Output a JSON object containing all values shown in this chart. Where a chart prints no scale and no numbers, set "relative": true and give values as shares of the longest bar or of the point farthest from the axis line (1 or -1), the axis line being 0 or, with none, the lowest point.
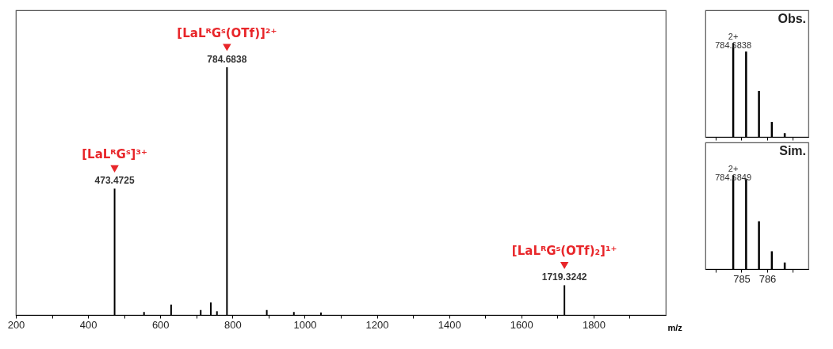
{
  "chart_data": [
    {
      "type": "bar",
      "relative": true,
      "xlabel": "m/z",
      "x": [
        473.4725,
        555,
        630,
        712,
        740,
        757,
        784.6838,
        895,
        970,
        1045,
        1719.3242
      ],
      "series": [
        {
          "color": "#000000",
          "values": [
            0.51,
            0.012,
            0.042,
            0.02,
            0.05,
            0.015,
            1,
            0.02,
            0.012,
            0.01,
            0.12
          ]
        }
      ],
      "xlim": [
        200,
        2000
      ],
      "xticks": [
        200,
        {
          "value": 300,
          "label": null
        },
        400,
        {
          "value": 500,
          "label": null
        },
        600,
        {
          "value": 700,
          "label": null
        },
        800,
        {
          "value": 900,
          "label": null
        },
        1000,
        {
          "value": 1100,
          "label": null
        },
        1200,
        {
          "value": 1300,
          "label": null
        },
        1400,
        {
          "value": 1500,
          "label": null
        },
        1600,
        {
          "value": 1700,
          "label": null
        },
        1800,
        {
          "value": 1900,
          "label": null
        }
      ],
      "annotations": [
        {
          "text": "[LaLᴿGˢ]³⁺",
          "x": 473.4725,
          "y": 0.51
        },
        {
          "text": "473.4725",
          "x": 473.4725,
          "y": 0.51
        },
        {
          "text": "[LaLᴿGˢ(OTf)]²⁺",
          "x": 784.6838,
          "y": 1
        },
        {
          "text": "784.6838",
          "x": 784.6838,
          "y": 1
        },
        {
          "text": "[LaLᴿGˢ(OTf)₂]¹⁺",
          "x": 1719.3242,
          "y": 0.12
        },
        {
          "text": "1719.3242",
          "x": 1719.3242,
          "y": 0.12
        }
      ],
      "grid": false,
      "legend": false
    },
    {
      "type": "bar",
      "relative": true,
      "title": "Obs.",
      "x": [
        784.68,
        785.18,
        785.68,
        786.18,
        786.68
      ],
      "series": [
        {
          "color": "#000000",
          "values": [
            1,
            0.91,
            0.49,
            0.16,
            0.04
          ]
        }
      ],
      "xlim": [
        783.6,
        787.6
      ],
      "xticks": [
        {
          "value": 784,
          "label": null
        },
        785,
        786,
        {
          "value": 787,
          "label": null
        }
      ],
      "tick_labels": false,
      "annotations": [
        {
          "text": "2+\n784.6838",
          "x": 784.68,
          "y": 1
        }
      ],
      "grid": false,
      "legend": false
    },
    {
      "type": "bar",
      "relative": true,
      "title": "Sim.",
      "x": [
        784.68,
        785.18,
        785.68,
        786.18,
        786.68
      ],
      "series": [
        {
          "color": "#000000",
          "values": [
            1,
            0.96,
            0.51,
            0.19,
            0.07
          ]
        }
      ],
      "xlim": [
        783.6,
        787.6
      ],
      "xticks": [
        {
          "value": 784,
          "label": null
        },
        785,
        786,
        {
          "value": 787,
          "label": null
        }
      ],
      "tick_labels": "x",
      "annotations": [
        {
          "text": "2+\n784.6849",
          "x": 784.68,
          "y": 1
        }
      ],
      "grid": false,
      "legend": false
    }
  ]
}
